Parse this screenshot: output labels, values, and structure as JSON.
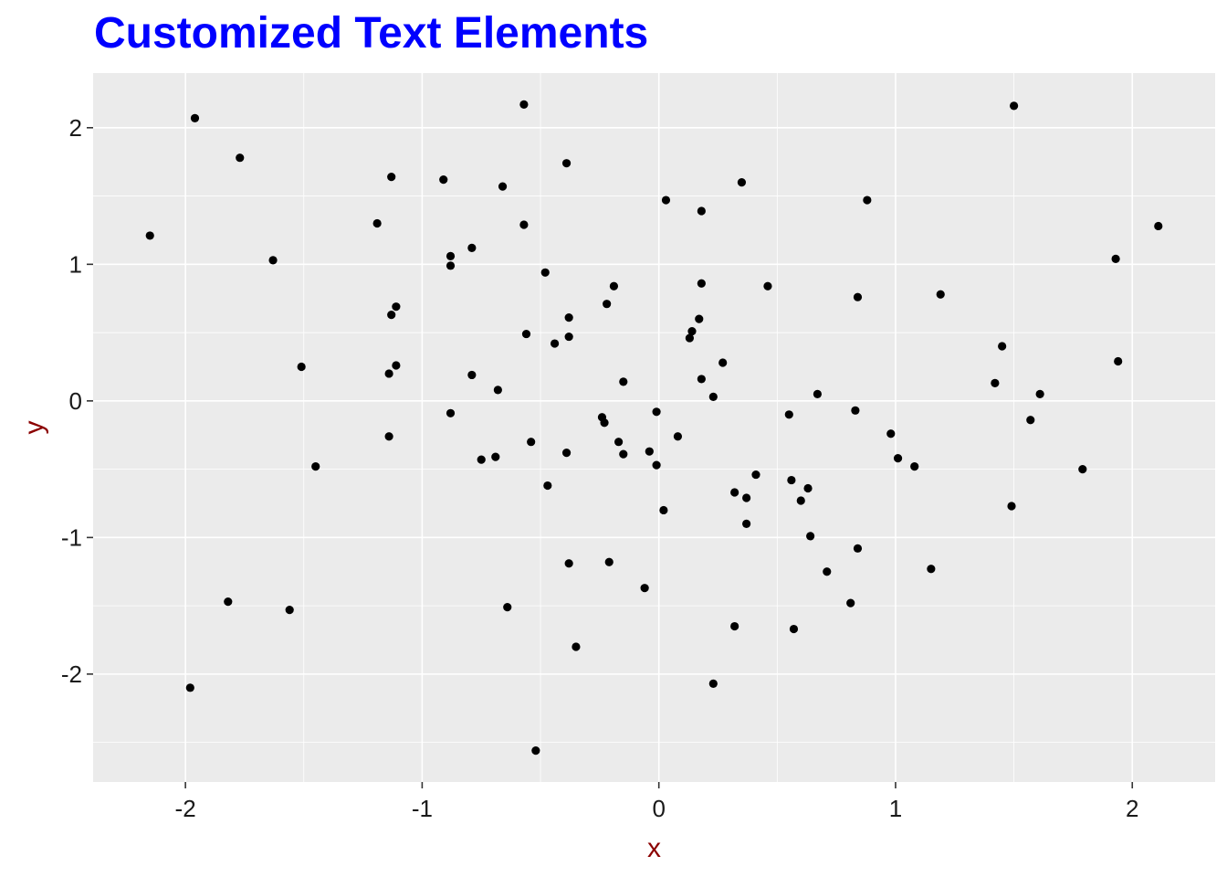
{
  "chart_data": {
    "type": "scatter",
    "title": "Customized Text Elements",
    "xlabel": "x",
    "ylabel": "y",
    "xlim": [
      -2.39,
      2.35
    ],
    "ylim": [
      -2.79,
      2.4
    ],
    "x_ticks": [
      -2,
      -1,
      0,
      1,
      2
    ],
    "x_tick_labels": [
      "-2",
      "-1",
      "0",
      "1",
      "2"
    ],
    "y_ticks": [
      -2,
      -1,
      0,
      1,
      2
    ],
    "y_tick_labels": [
      "-2",
      "-1",
      "0",
      "1",
      "2"
    ],
    "grid": true,
    "legend": "none",
    "colors": {
      "panel_background": "#ebebeb",
      "grid": "#ffffff",
      "title": "#0000ff",
      "axis_title": "#8b0000",
      "points": "#000000"
    },
    "points": [
      {
        "x": -2.15,
        "y": 1.21
      },
      {
        "x": -1.96,
        "y": 2.07
      },
      {
        "x": -1.77,
        "y": 1.78
      },
      {
        "x": -1.63,
        "y": 1.03
      },
      {
        "x": -1.51,
        "y": 0.25
      },
      {
        "x": -1.45,
        "y": -0.48
      },
      {
        "x": -1.98,
        "y": -2.1
      },
      {
        "x": -1.82,
        "y": -1.47
      },
      {
        "x": -1.56,
        "y": -1.53
      },
      {
        "x": -1.19,
        "y": 1.3
      },
      {
        "x": -1.13,
        "y": 1.64
      },
      {
        "x": -1.13,
        "y": 0.63
      },
      {
        "x": -1.11,
        "y": 0.69
      },
      {
        "x": -1.14,
        "y": 0.2
      },
      {
        "x": -1.11,
        "y": 0.26
      },
      {
        "x": -1.14,
        "y": -0.26
      },
      {
        "x": -0.91,
        "y": 1.62
      },
      {
        "x": -0.88,
        "y": 1.06
      },
      {
        "x": -0.88,
        "y": 0.99
      },
      {
        "x": -0.88,
        "y": -0.09
      },
      {
        "x": -0.79,
        "y": 1.12
      },
      {
        "x": -0.79,
        "y": 0.19
      },
      {
        "x": -0.75,
        "y": -0.43
      },
      {
        "x": -0.69,
        "y": -0.41
      },
      {
        "x": -0.68,
        "y": 0.08
      },
      {
        "x": -0.66,
        "y": 1.57
      },
      {
        "x": -0.64,
        "y": -1.51
      },
      {
        "x": -0.57,
        "y": 2.17
      },
      {
        "x": -0.57,
        "y": 1.29
      },
      {
        "x": -0.56,
        "y": 0.49
      },
      {
        "x": -0.54,
        "y": -0.3
      },
      {
        "x": -0.52,
        "y": -2.56
      },
      {
        "x": -0.48,
        "y": 0.94
      },
      {
        "x": -0.47,
        "y": -0.62
      },
      {
        "x": -0.44,
        "y": 0.42
      },
      {
        "x": -0.39,
        "y": 1.74
      },
      {
        "x": -0.39,
        "y": -0.38
      },
      {
        "x": -0.38,
        "y": 0.61
      },
      {
        "x": -0.38,
        "y": 0.47
      },
      {
        "x": -0.38,
        "y": -1.19
      },
      {
        "x": -0.35,
        "y": -1.8
      },
      {
        "x": -0.24,
        "y": -0.12
      },
      {
        "x": -0.23,
        "y": -0.16
      },
      {
        "x": -0.22,
        "y": 0.71
      },
      {
        "x": -0.21,
        "y": -1.18
      },
      {
        "x": -0.19,
        "y": 0.84
      },
      {
        "x": -0.17,
        "y": -0.3
      },
      {
        "x": -0.15,
        "y": 0.14
      },
      {
        "x": -0.15,
        "y": -0.39
      },
      {
        "x": -0.06,
        "y": -1.37
      },
      {
        "x": -0.04,
        "y": -0.37
      },
      {
        "x": -0.01,
        "y": -0.47
      },
      {
        "x": -0.01,
        "y": -0.08
      },
      {
        "x": 0.02,
        "y": -0.8
      },
      {
        "x": 0.03,
        "y": 1.47
      },
      {
        "x": 0.08,
        "y": -0.26
      },
      {
        "x": 0.13,
        "y": 0.46
      },
      {
        "x": 0.14,
        "y": 0.51
      },
      {
        "x": 0.17,
        "y": 0.6
      },
      {
        "x": 0.18,
        "y": 0.86
      },
      {
        "x": 0.18,
        "y": 1.39
      },
      {
        "x": 0.18,
        "y": 0.16
      },
      {
        "x": 0.23,
        "y": 0.03
      },
      {
        "x": 0.23,
        "y": -2.07
      },
      {
        "x": 0.27,
        "y": 0.28
      },
      {
        "x": 0.32,
        "y": -0.67
      },
      {
        "x": 0.32,
        "y": -1.65
      },
      {
        "x": 0.35,
        "y": 1.6
      },
      {
        "x": 0.37,
        "y": -0.71
      },
      {
        "x": 0.37,
        "y": -0.9
      },
      {
        "x": 0.41,
        "y": -0.54
      },
      {
        "x": 0.46,
        "y": 0.84
      },
      {
        "x": 0.55,
        "y": -0.1
      },
      {
        "x": 0.56,
        "y": -0.58
      },
      {
        "x": 0.57,
        "y": -1.67
      },
      {
        "x": 0.6,
        "y": -0.73
      },
      {
        "x": 0.63,
        "y": -0.64
      },
      {
        "x": 0.64,
        "y": -0.99
      },
      {
        "x": 0.67,
        "y": 0.05
      },
      {
        "x": 0.71,
        "y": -1.25
      },
      {
        "x": 0.81,
        "y": -1.48
      },
      {
        "x": 0.83,
        "y": -0.07
      },
      {
        "x": 0.84,
        "y": 0.76
      },
      {
        "x": 0.84,
        "y": -1.08
      },
      {
        "x": 0.88,
        "y": 1.47
      },
      {
        "x": 0.98,
        "y": -0.24
      },
      {
        "x": 1.01,
        "y": -0.42
      },
      {
        "x": 1.08,
        "y": -0.48
      },
      {
        "x": 1.15,
        "y": -1.23
      },
      {
        "x": 1.19,
        "y": 0.78
      },
      {
        "x": 1.42,
        "y": 0.13
      },
      {
        "x": 1.45,
        "y": 0.4
      },
      {
        "x": 1.49,
        "y": -0.77
      },
      {
        "x": 1.5,
        "y": 2.16
      },
      {
        "x": 1.57,
        "y": -0.14
      },
      {
        "x": 1.61,
        "y": 0.05
      },
      {
        "x": 1.79,
        "y": -0.5
      },
      {
        "x": 1.93,
        "y": 1.04
      },
      {
        "x": 1.94,
        "y": 0.29
      },
      {
        "x": 2.11,
        "y": 1.28
      }
    ]
  }
}
